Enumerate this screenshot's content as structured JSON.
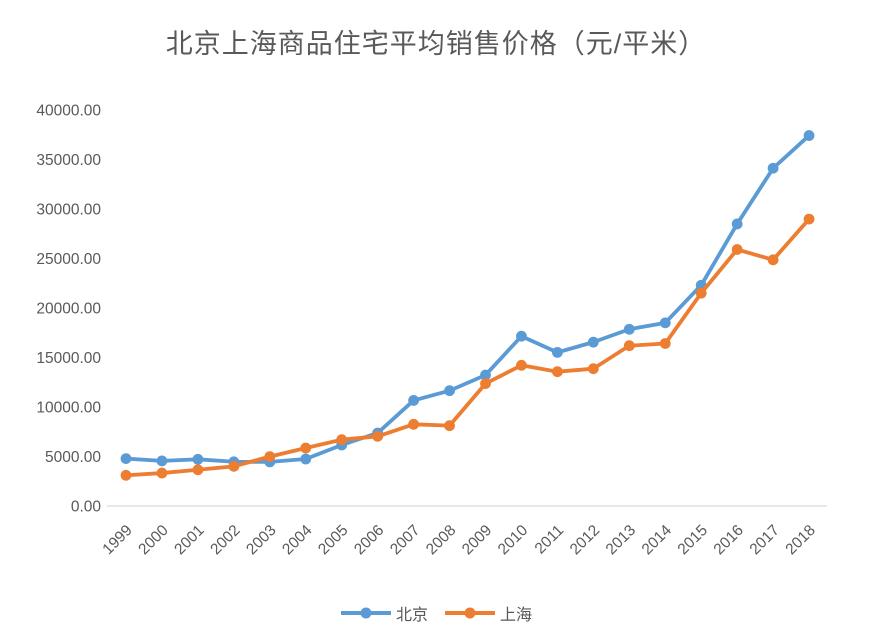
{
  "chart_data": {
    "type": "line",
    "title": "北京上海商品住宅平均销售价格（元/平米）",
    "categories": [
      "1999",
      "2000",
      "2001",
      "2002",
      "2003",
      "2004",
      "2005",
      "2006",
      "2007",
      "2008",
      "2009",
      "2010",
      "2011",
      "2012",
      "2013",
      "2014",
      "2015",
      "2016",
      "2017",
      "2018"
    ],
    "series": [
      {
        "key": "beijing",
        "name": "北京",
        "color": "#5B9BD5",
        "values": [
          4787,
          4557,
          4716,
          4467,
          4456,
          4747,
          6162,
          7375,
          10661,
          11648,
          13224,
          17151,
          15518,
          16553,
          17854,
          18499,
          22300,
          28489,
          34117,
          37420
        ]
      },
      {
        "key": "shanghai",
        "name": "上海",
        "color": "#ED7D31",
        "values": [
          3102,
          3326,
          3658,
          4007,
          4989,
          5855,
          6698,
          7039,
          8253,
          8115,
          12364,
          14213,
          13566,
          13870,
          16192,
          16415,
          21501,
          25910,
          24866,
          28981
        ]
      }
    ],
    "xlabel": "",
    "ylabel": "",
    "ylim": [
      0,
      40000
    ],
    "ytick_step": 5000,
    "ytick_labels": [
      "0.00",
      "5000.00",
      "10000.00",
      "15000.00",
      "20000.00",
      "25000.00",
      "30000.00",
      "35000.00",
      "40000.00"
    ],
    "grid": false,
    "legend_position": "bottom",
    "marker": "circle",
    "axis_color": "#D9D9D9",
    "text_color": "#595959"
  }
}
